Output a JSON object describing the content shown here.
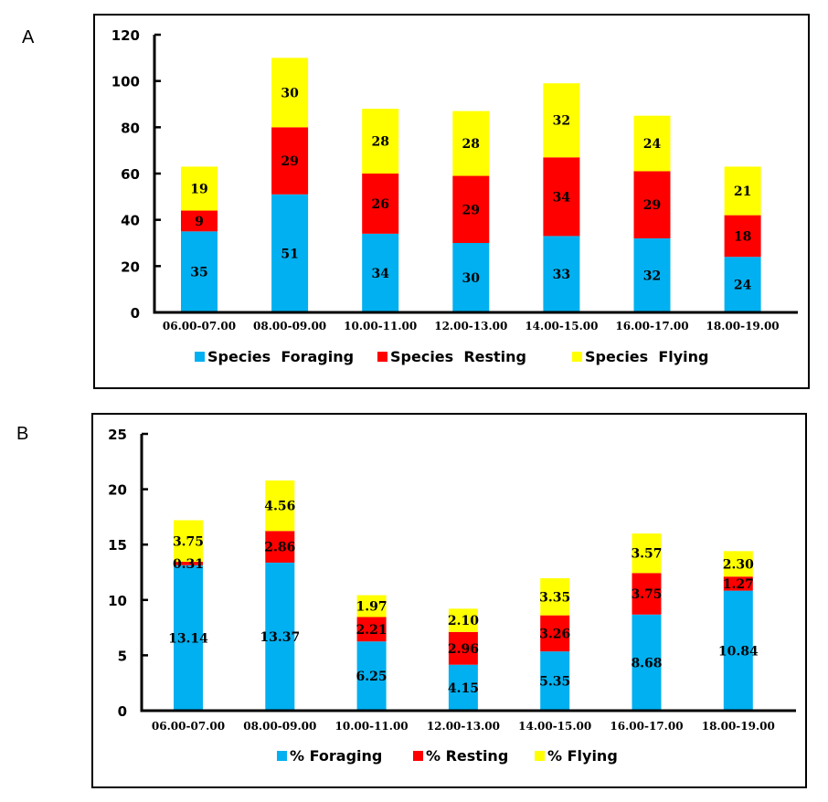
{
  "panels": [
    {
      "letter": "A"
    },
    {
      "letter": "B"
    }
  ],
  "colors": {
    "foraging": "#00B0F0",
    "resting": "#FF0000",
    "flying": "#FFFF00",
    "axis": "#000000"
  },
  "chart_data": [
    {
      "type": "bar",
      "stacked": true,
      "panel": "A",
      "title": "",
      "xlabel": "",
      "ylabel": "",
      "categories": [
        "06.00-07.00",
        "08.00-09.00",
        "10.00-11.00",
        "12.00-13.00",
        "14.00-15.00",
        "16.00-17.00",
        "18.00-19.00"
      ],
      "ylim": [
        0,
        120
      ],
      "yticks": [
        0,
        20,
        40,
        60,
        80,
        100,
        120
      ],
      "grid": false,
      "legend_position": "bottom",
      "series": [
        {
          "name": "Species  Foraging",
          "color": "#00B0F0",
          "values": [
            35,
            51,
            34,
            30,
            33,
            32,
            24
          ],
          "labels": [
            "35",
            "51",
            "34",
            "30",
            "33",
            "32",
            "24"
          ]
        },
        {
          "name": "Species  Resting",
          "color": "#FF0000",
          "values": [
            9,
            29,
            26,
            29,
            34,
            29,
            18
          ],
          "labels": [
            "9",
            "29",
            "26",
            "29",
            "34",
            "29",
            "18"
          ]
        },
        {
          "name": "Species  Flying",
          "color": "#FFFF00",
          "values": [
            19,
            30,
            28,
            28,
            32,
            24,
            21
          ],
          "labels": [
            "19",
            "30",
            "28",
            "28",
            "32",
            "24",
            "21"
          ]
        }
      ]
    },
    {
      "type": "bar",
      "stacked": true,
      "panel": "B",
      "title": "",
      "xlabel": "",
      "ylabel": "",
      "categories": [
        "06.00-07.00",
        "08.00-09.00",
        "10.00-11.00",
        "12.00-13.00",
        "14.00-15.00",
        "16.00-17.00",
        "18.00-19.00"
      ],
      "ylim": [
        0,
        25
      ],
      "yticks": [
        0,
        5,
        10,
        15,
        20,
        25
      ],
      "grid": false,
      "legend_position": "bottom",
      "series": [
        {
          "name": "% Foraging",
          "color": "#00B0F0",
          "values": [
            13.14,
            13.37,
            6.25,
            4.15,
            5.35,
            8.68,
            10.84
          ],
          "labels": [
            "13.14",
            "13.37",
            "6.25",
            "4.15",
            "5.35",
            "8.68",
            "10.84"
          ]
        },
        {
          "name": "% Resting",
          "color": "#FF0000",
          "values": [
            0.31,
            2.86,
            2.21,
            2.96,
            3.26,
            3.75,
            1.27
          ],
          "labels": [
            "0.31",
            "2.86",
            "2.21",
            "2.96",
            "3.26",
            "3.75",
            "1.27"
          ]
        },
        {
          "name": "% Flying",
          "color": "#FFFF00",
          "values": [
            3.75,
            4.56,
            1.97,
            2.1,
            3.35,
            3.57,
            2.3
          ],
          "labels": [
            "3.75",
            "4.56",
            "1.97",
            "2.10",
            "3.35",
            "3.57",
            "2.30"
          ]
        }
      ]
    }
  ]
}
